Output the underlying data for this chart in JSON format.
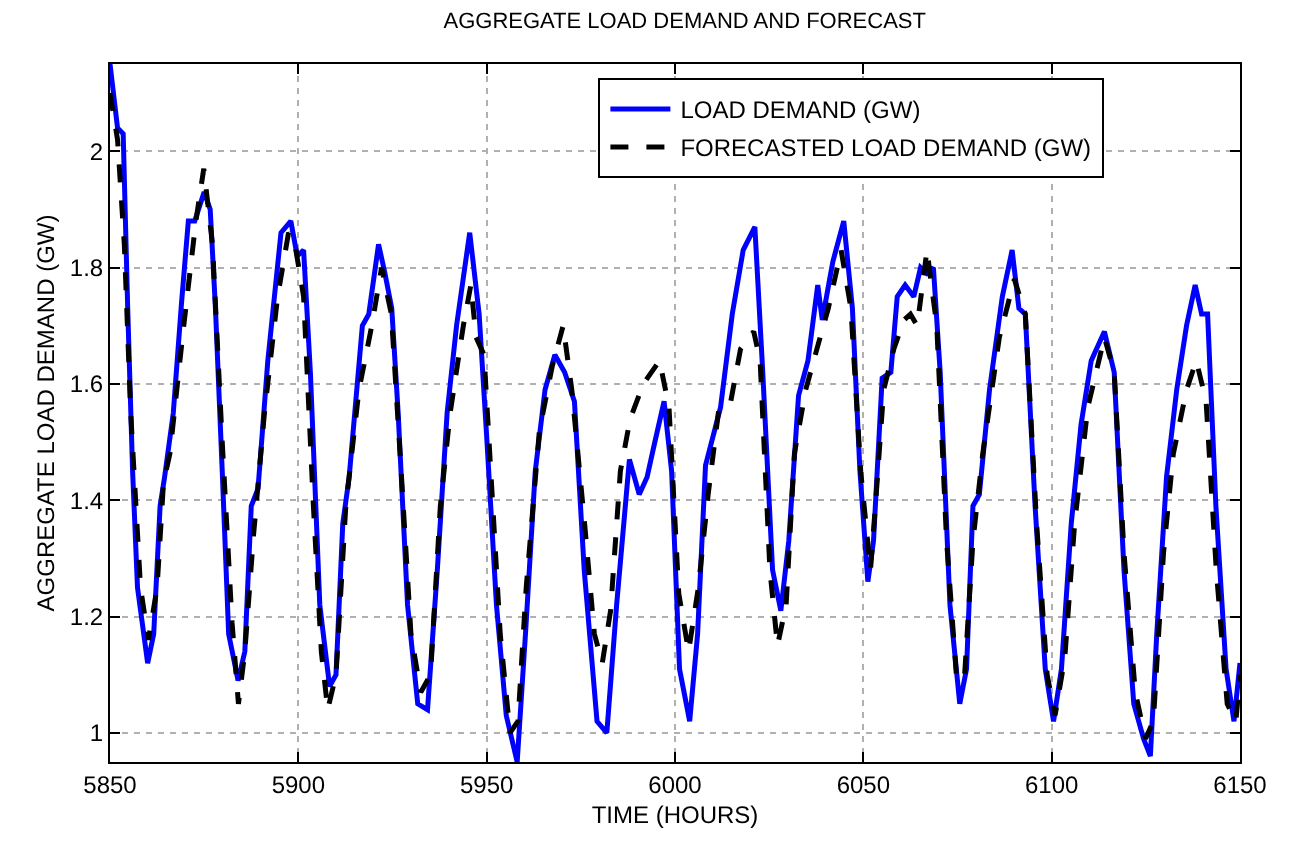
{
  "chart_data": {
    "type": "line",
    "title": "AGGREGATE LOAD DEMAND AND FORECAST",
    "xlabel": "TIME (HOURS)",
    "ylabel": "AGGREGATE LOAD DEMAND (GW)",
    "xlim": [
      5850,
      6150
    ],
    "xticks": [
      5850,
      5900,
      5950,
      6000,
      6050,
      6100,
      6150
    ],
    "ylim": [
      0.95,
      2.15
    ],
    "yticks": [
      1,
      1.2,
      1.4,
      1.6,
      1.8,
      2
    ],
    "grid": true,
    "legend": "top right",
    "marker": "none",
    "series": [
      {
        "name": "LOAD DEMAND (GW)",
        "color": "#0000ff",
        "line_style": "solid",
        "x": [
          5850,
          5852,
          5853.5,
          5854.7,
          5856,
          5857.3,
          5860,
          5861.6,
          5863.3,
          5864.5,
          5866.8,
          5869,
          5870.8,
          5872.5,
          5875,
          5876.6,
          5878,
          5879.8,
          5881.5,
          5884,
          5885.8,
          5887.5,
          5889.3,
          5891.9,
          5895.4,
          5898,
          5899.7,
          5901.4,
          5903.2,
          5905.7,
          5908.3,
          5910,
          5911.8,
          5913.5,
          5917,
          5918.7,
          5921.3,
          5923,
          5924.8,
          5926.5,
          5929,
          5931.7,
          5934.3,
          5936.9,
          5939.5,
          5942,
          5945.5,
          5948,
          5950,
          5952.6,
          5955.2,
          5958.1,
          5960.3,
          5962.9,
          5965.5,
          5968.1,
          5970.7,
          5973.3,
          5975.9,
          5979.3,
          5981.9,
          5984.5,
          5987.9,
          5990.5,
          5992.6,
          5994.3,
          5997.1,
          5999.1,
          6001.2,
          6003.9,
          6006,
          6008.1,
          6012.1,
          6015.2,
          6018.1,
          6021.2,
          6023.3,
          6025.9,
          6028.1,
          6030.2,
          6032.8,
          6035.3,
          6037.9,
          6039.1,
          6041.9,
          6044.8,
          6047.1,
          6049.1,
          6051.2,
          6052.7,
          6055,
          6057.3,
          6059,
          6061.1,
          6063.4,
          6065.2,
          6066.9,
          6068.6,
          6070.4,
          6073,
          6075.6,
          6077.4,
          6079.1,
          6080.8,
          6083.5,
          6086.9,
          6089.5,
          6091.3,
          6093,
          6095.6,
          6098.3,
          6100.5,
          6102.6,
          6105.2,
          6107.8,
          6110.5,
          6114,
          6116.6,
          6119.2,
          6121.8,
          6124.4,
          6126.2,
          6127.9,
          6130.5,
          6133.2,
          6135.8,
          6138.1,
          6139.8,
          6141.4,
          6143.6,
          6146.3,
          6148.4,
          6150
        ],
        "values": [
          2.15,
          2.04,
          2.03,
          1.73,
          1.45,
          1.25,
          1.12,
          1.17,
          1.39,
          1.44,
          1.55,
          1.74,
          1.88,
          1.88,
          1.93,
          1.9,
          1.73,
          1.45,
          1.17,
          1.09,
          1.14,
          1.39,
          1.42,
          1.64,
          1.86,
          1.88,
          1.82,
          1.83,
          1.62,
          1.22,
          1.08,
          1.1,
          1.36,
          1.44,
          1.7,
          1.72,
          1.84,
          1.79,
          1.73,
          1.55,
          1.22,
          1.05,
          1.04,
          1.28,
          1.55,
          1.7,
          1.86,
          1.72,
          1.51,
          1.22,
          1.03,
          0.95,
          1.17,
          1.45,
          1.59,
          1.65,
          1.62,
          1.57,
          1.28,
          1.02,
          1,
          1.22,
          1.47,
          1.41,
          1.44,
          1.49,
          1.57,
          1.45,
          1.11,
          1.02,
          1.17,
          1.46,
          1.56,
          1.72,
          1.83,
          1.87,
          1.62,
          1.28,
          1.21,
          1.33,
          1.58,
          1.64,
          1.77,
          1.71,
          1.81,
          1.88,
          1.73,
          1.45,
          1.26,
          1.33,
          1.61,
          1.62,
          1.75,
          1.77,
          1.75,
          1.8,
          1.79,
          1.8,
          1.62,
          1.22,
          1.05,
          1.11,
          1.39,
          1.41,
          1.59,
          1.75,
          1.83,
          1.73,
          1.72,
          1.39,
          1.11,
          1.02,
          1.11,
          1.36,
          1.53,
          1.64,
          1.69,
          1.62,
          1.28,
          1.05,
          0.99,
          0.96,
          1.17,
          1.44,
          1.59,
          1.7,
          1.77,
          1.72,
          1.72,
          1.39,
          1.11,
          1.02,
          1.12
        ]
      },
      {
        "name": "FORECASTED LOAD DEMAND (GW)",
        "color": "#000000",
        "line_style": "dashed",
        "x": [
          5850,
          5852,
          5853.8,
          5855.5,
          5858.1,
          5860.2,
          5862.5,
          5864.2,
          5865.9,
          5869.4,
          5872.8,
          5874.9,
          5877.2,
          5879.8,
          5882.4,
          5884.1,
          5885.8,
          5888.1,
          5891,
          5894.5,
          5897.4,
          5899.1,
          5901.4,
          5904,
          5906.1,
          5907.8,
          5910,
          5912.6,
          5916.1,
          5919.5,
          5922.1,
          5924.7,
          5927.3,
          5929.9,
          5932.5,
          5935.1,
          5937.7,
          5940.3,
          5943.8,
          5945.8,
          5947.2,
          5949.3,
          5951,
          5953.6,
          5956.2,
          5958.3,
          5960.5,
          5964,
          5967.4,
          5970.3,
          5972.6,
          5976,
          5978.6,
          5980.7,
          5982.9,
          5985.5,
          5988.1,
          5991.6,
          5995.9,
          5998.4,
          6001,
          6003.6,
          6006.2,
          6008.8,
          6011.7,
          6014.8,
          6017.4,
          6020.9,
          6022.6,
          6025.2,
          6027.2,
          6029.5,
          6031.7,
          6034.7,
          6038.1,
          6040.7,
          6044.1,
          6046.7,
          6049.3,
          6051.9,
          6053.2,
          6055.4,
          6058.1,
          6060.8,
          6062.5,
          6064.3,
          6066.9,
          6069.5,
          6072.1,
          6074.7,
          6076.8,
          6079.1,
          6081.7,
          6086.1,
          6090.1,
          6093,
          6096,
          6098.8,
          6100.9,
          6103.5,
          6106.1,
          6109.6,
          6114,
          6116.6,
          6119.2,
          6122.2,
          6124.9,
          6127,
          6129.7,
          6132.3,
          6135.8,
          6138.4,
          6141,
          6143.7,
          6146.6,
          6148.9,
          6150
        ],
        "values": [
          2.1,
          2.02,
          1.84,
          1.55,
          1.25,
          1.16,
          1.25,
          1.43,
          1.48,
          1.69,
          1.88,
          1.97,
          1.84,
          1.5,
          1.19,
          1.05,
          1.14,
          1.34,
          1.55,
          1.75,
          1.86,
          1.84,
          1.75,
          1.39,
          1.14,
          1.04,
          1.1,
          1.39,
          1.59,
          1.7,
          1.8,
          1.72,
          1.45,
          1.17,
          1.07,
          1.1,
          1.39,
          1.55,
          1.7,
          1.77,
          1.68,
          1.65,
          1.46,
          1.17,
          1,
          1.02,
          1.25,
          1.52,
          1.63,
          1.7,
          1.59,
          1.36,
          1.17,
          1.12,
          1.21,
          1.45,
          1.54,
          1.6,
          1.64,
          1.56,
          1.24,
          1.14,
          1.25,
          1.41,
          1.56,
          1.57,
          1.66,
          1.69,
          1.64,
          1.28,
          1.15,
          1.22,
          1.48,
          1.59,
          1.67,
          1.73,
          1.83,
          1.73,
          1.45,
          1.28,
          1.39,
          1.59,
          1.66,
          1.71,
          1.72,
          1.7,
          1.83,
          1.7,
          1.33,
          1.1,
          1.09,
          1.33,
          1.48,
          1.68,
          1.78,
          1.72,
          1.36,
          1.1,
          1.03,
          1.13,
          1.36,
          1.56,
          1.68,
          1.62,
          1.31,
          1.07,
          0.99,
          1.02,
          1.31,
          1.48,
          1.59,
          1.64,
          1.57,
          1.28,
          1.05,
          1.02,
          1.1
        ]
      }
    ]
  }
}
